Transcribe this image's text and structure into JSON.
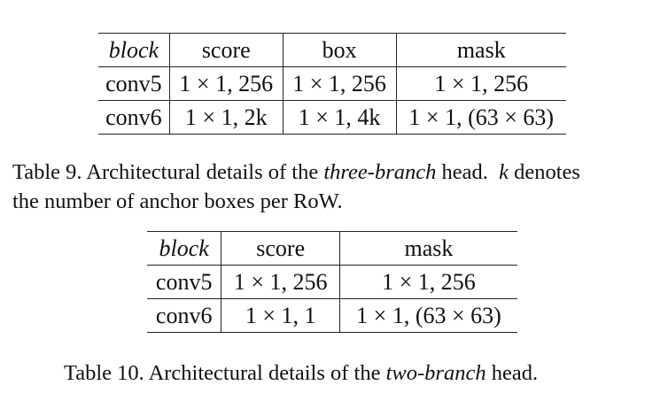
{
  "table9": {
    "headers": [
      "block",
      "score",
      "box",
      "mask"
    ],
    "rows": [
      [
        "conv5",
        "1 × 1, 256",
        "1 × 1, 256",
        "1 × 1, 256"
      ],
      [
        "conv6",
        "1 × 1, 2k",
        "1 × 1, 4k",
        "1 × 1, (63 × 63)"
      ]
    ]
  },
  "caption9": {
    "line1_prefix": "Table 9. Architectural details of the ",
    "line1_emph": "three-branch",
    "line1_mid": " head.  ",
    "line1_k": "k",
    "line1_suffix": " denotes",
    "line2": "the number of anchor boxes per RoW."
  },
  "table10": {
    "headers": [
      "block",
      "score",
      "mask"
    ],
    "rows": [
      [
        "conv5",
        "1 × 1, 256",
        "1 × 1, 256"
      ],
      [
        "conv6",
        "1 × 1, 1",
        "1 × 1, (63 × 63)"
      ]
    ]
  },
  "caption10": {
    "prefix": "Table 10. Architectural details of the ",
    "emph": "two-branch",
    "suffix": " head."
  }
}
